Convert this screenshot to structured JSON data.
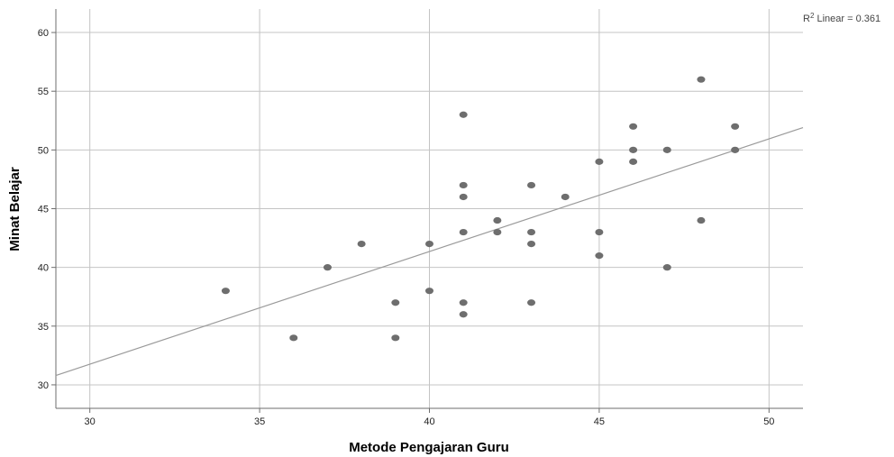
{
  "chart_data": {
    "type": "scatter",
    "xlabel": "Metode Pengajaran Guru",
    "ylabel": "Minat Belajar",
    "xlim": [
      29,
      51
    ],
    "ylim": [
      28,
      62
    ],
    "xticks": [
      30,
      35,
      40,
      45,
      50
    ],
    "yticks": [
      30,
      35,
      40,
      45,
      50,
      55,
      60
    ],
    "grid": true,
    "colors": {
      "marker": "#6e6e6e",
      "fit_line": "#9a9a9a",
      "grid": "#c4c4c4",
      "axis": "#6e6e6e"
    },
    "points": [
      {
        "x": 34,
        "y": 38
      },
      {
        "x": 36,
        "y": 34
      },
      {
        "x": 37,
        "y": 40
      },
      {
        "x": 38,
        "y": 42
      },
      {
        "x": 39,
        "y": 37
      },
      {
        "x": 39,
        "y": 34
      },
      {
        "x": 40,
        "y": 42
      },
      {
        "x": 40,
        "y": 38
      },
      {
        "x": 41,
        "y": 53
      },
      {
        "x": 41,
        "y": 47
      },
      {
        "x": 41,
        "y": 46
      },
      {
        "x": 41,
        "y": 43
      },
      {
        "x": 41,
        "y": 37
      },
      {
        "x": 41,
        "y": 36
      },
      {
        "x": 42,
        "y": 44
      },
      {
        "x": 42,
        "y": 43
      },
      {
        "x": 43,
        "y": 47
      },
      {
        "x": 43,
        "y": 43
      },
      {
        "x": 43,
        "y": 42
      },
      {
        "x": 43,
        "y": 37
      },
      {
        "x": 44,
        "y": 46
      },
      {
        "x": 45,
        "y": 49
      },
      {
        "x": 45,
        "y": 43
      },
      {
        "x": 45,
        "y": 41
      },
      {
        "x": 46,
        "y": 52
      },
      {
        "x": 46,
        "y": 50
      },
      {
        "x": 46,
        "y": 49
      },
      {
        "x": 47,
        "y": 50
      },
      {
        "x": 47,
        "y": 40
      },
      {
        "x": 48,
        "y": 56
      },
      {
        "x": 48,
        "y": 44
      },
      {
        "x": 49,
        "y": 52
      },
      {
        "x": 49,
        "y": 50
      }
    ],
    "fit_line": {
      "x": [
        29,
        51
      ],
      "y": [
        30.8,
        51.9
      ],
      "label_prefix": "R",
      "label_sup": "2",
      "label_suffix": " Linear = 0.361"
    }
  }
}
